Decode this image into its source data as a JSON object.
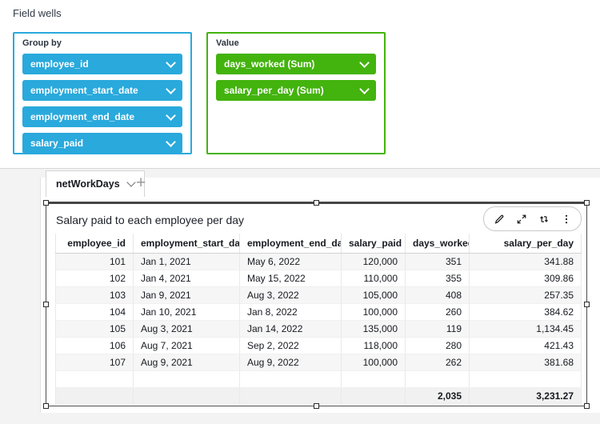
{
  "field_wells": {
    "title": "Field wells",
    "group_by": {
      "label": "Group by",
      "accent": "#29A9DC",
      "pills": [
        "employee_id",
        "employment_start_date",
        "employment_end_date",
        "salary_paid"
      ]
    },
    "value": {
      "label": "Value",
      "accent": "#43B30E",
      "pills": [
        "days_worked (Sum)",
        "salary_per_day (Sum)"
      ]
    }
  },
  "sheet_tabs": {
    "active_tab": "netWorkDays",
    "add_tab": "+"
  },
  "visual": {
    "title": "Salary paid to each employee per day",
    "toolbar_icons": [
      "edit-pencil-icon",
      "expand-icon",
      "swap-arrows-icon",
      "menu-dots-icon"
    ],
    "table": {
      "columns": [
        {
          "label": "employee_id",
          "align": "right"
        },
        {
          "label": "employment_start_date",
          "align": "left"
        },
        {
          "label": "employment_end_date",
          "align": "left"
        },
        {
          "label": "salary_paid",
          "align": "right"
        },
        {
          "label": "days_worked",
          "align": "right"
        },
        {
          "label": "salary_per_day",
          "align": "right"
        }
      ],
      "rows": [
        [
          "101",
          "Jan 1, 2021",
          "May 6, 2022",
          "120,000",
          "351",
          "341.88"
        ],
        [
          "102",
          "Jan 4, 2021",
          "May 15, 2022",
          "110,000",
          "355",
          "309.86"
        ],
        [
          "103",
          "Jan 9, 2021",
          "Aug 3, 2022",
          "105,000",
          "408",
          "257.35"
        ],
        [
          "104",
          "Jan 10, 2021",
          "Jan 8, 2022",
          "100,000",
          "260",
          "384.62"
        ],
        [
          "105",
          "Aug 3, 2021",
          "Jan 14, 2022",
          "135,000",
          "119",
          "1,134.45"
        ],
        [
          "106",
          "Aug 7, 2021",
          "Sep 2, 2022",
          "118,000",
          "280",
          "421.43"
        ],
        [
          "107",
          "Aug 9, 2021",
          "Aug 9, 2022",
          "100,000",
          "262",
          "381.68"
        ]
      ],
      "blank_row": [
        "",
        "",
        "",
        "",
        "",
        ""
      ],
      "total_row": [
        "",
        "",
        "",
        "",
        "2,035",
        "3,231.27"
      ]
    }
  }
}
